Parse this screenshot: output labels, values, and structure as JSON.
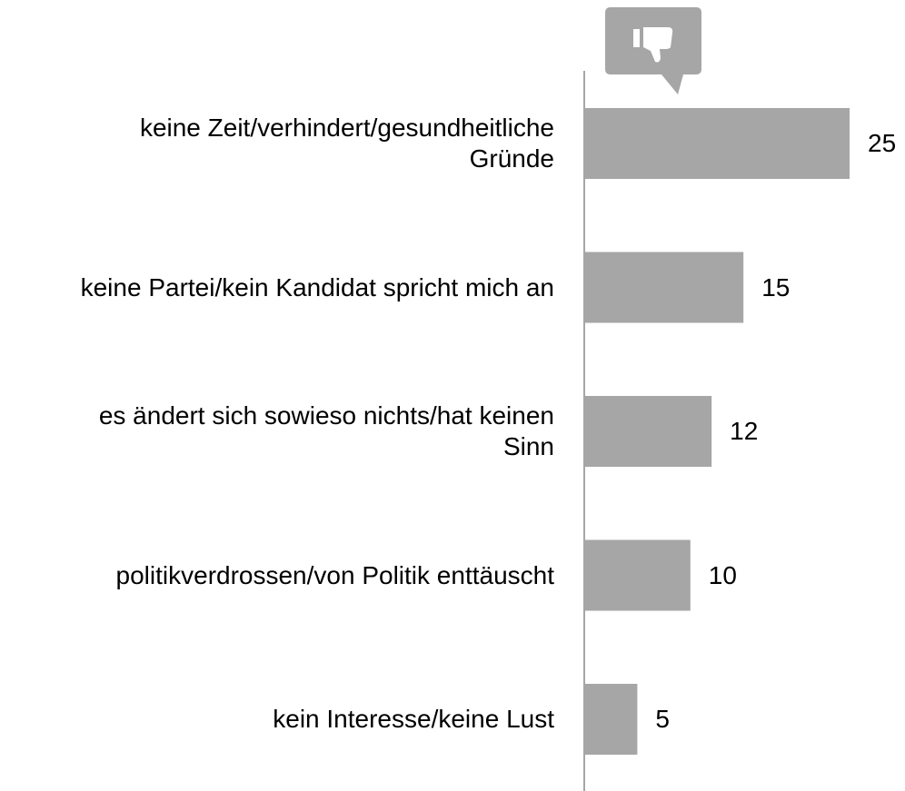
{
  "chart_data": {
    "type": "bar",
    "orientation": "horizontal",
    "categories": [
      "keine Zeit/verhindert/gesundheitliche Gründe",
      "keine Partei/kein Kandidat spricht mich an",
      "es ändert sich sowieso nichts/hat keinen Sinn",
      "politikverdrossen/von Politik enttäuscht",
      "kein Interesse/keine Lust"
    ],
    "values": [
      25,
      15,
      12,
      10,
      5
    ],
    "color": "#a6a6a6"
  }
}
